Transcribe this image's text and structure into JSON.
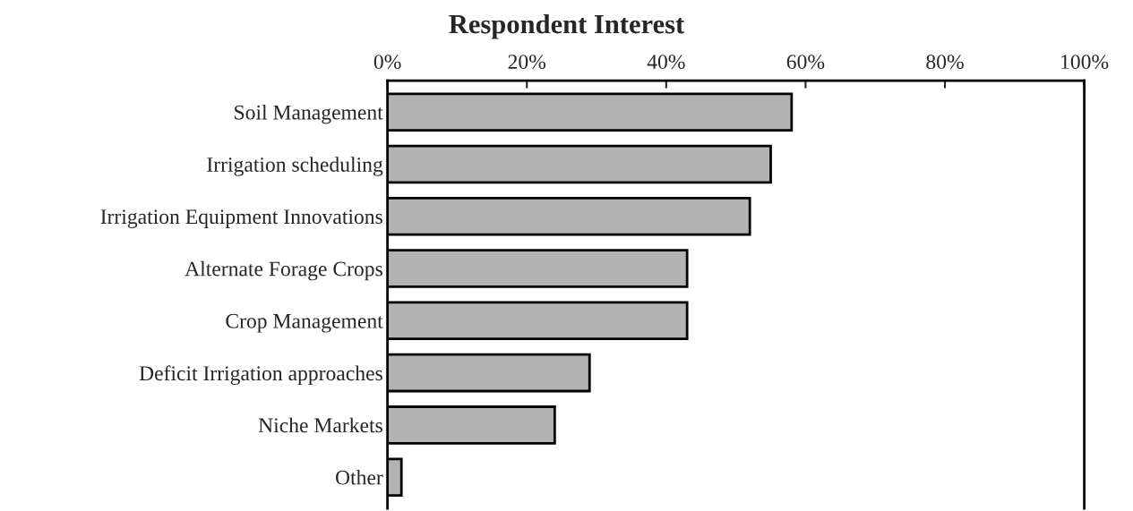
{
  "chart_data": {
    "type": "bar",
    "orientation": "horizontal",
    "title": "Respondent Interest",
    "categories": [
      "Soil Management",
      "Irrigation scheduling",
      "Irrigation Equipment Innovations",
      "Alternate Forage Crops",
      "Crop Management",
      "Deficit Irrigation approaches",
      "Niche Markets",
      "Other"
    ],
    "values": [
      58,
      55,
      52,
      43,
      43,
      29,
      24,
      2
    ],
    "color": "#b3b3b3",
    "xlim": [
      0,
      100
    ],
    "xticks": [
      {
        "value": 0,
        "label": "0%"
      },
      {
        "value": 20,
        "label": "20%"
      },
      {
        "value": 40,
        "label": "40%"
      },
      {
        "value": 60,
        "label": "60%"
      },
      {
        "value": 80,
        "label": "80%"
      },
      {
        "value": 100,
        "label": "100%"
      }
    ],
    "grid": false,
    "legend": false
  }
}
